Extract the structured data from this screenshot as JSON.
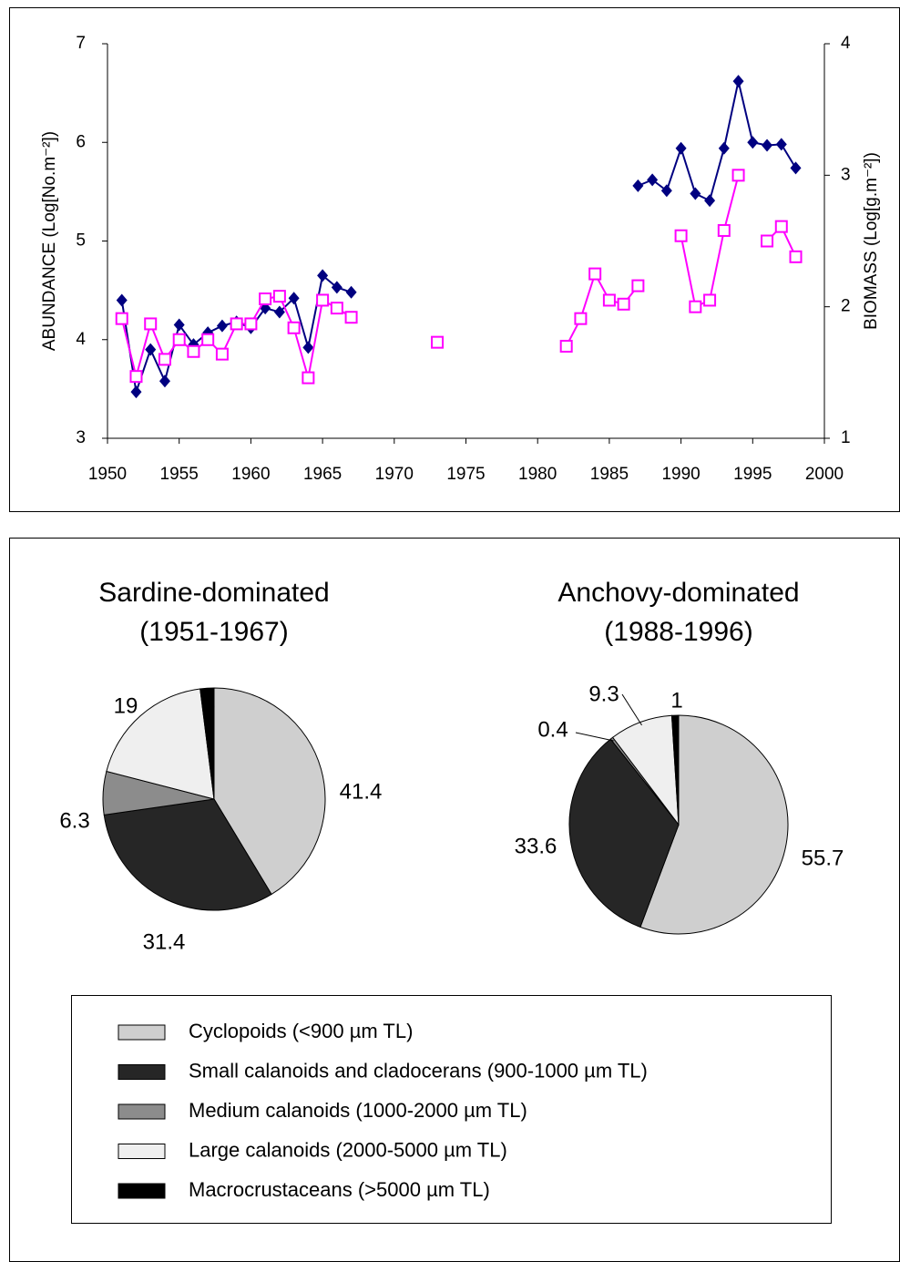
{
  "chart_data": [
    {
      "type": "line",
      "x": [
        1951,
        1952,
        1953,
        1954,
        1955,
        1956,
        1957,
        1958,
        1959,
        1960,
        1961,
        1962,
        1963,
        1964,
        1965,
        1966,
        1967,
        1968,
        1969,
        1970,
        1971,
        1972,
        1973,
        1974,
        1975,
        1976,
        1977,
        1978,
        1979,
        1980,
        1981,
        1982,
        1983,
        1984,
        1985,
        1986,
        1987,
        1988,
        1989,
        1990,
        1991,
        1992,
        1993,
        1994,
        1995,
        1996,
        1997,
        1998
      ],
      "xlim": [
        1950,
        2000
      ],
      "xticks": [
        1950,
        1955,
        1960,
        1965,
        1970,
        1975,
        1980,
        1985,
        1990,
        1995,
        2000
      ],
      "ylim": [
        3,
        7
      ],
      "yticks": [
        3,
        4,
        5,
        6,
        7
      ],
      "y2lim": [
        1,
        4
      ],
      "y2ticks": [
        1,
        2,
        3,
        4
      ],
      "y_label": "ABUNDANCE (Log[No.m⁻²])",
      "y2_label": "BIOMASS (Log[g.m⁻²])",
      "grid": false,
      "series": [
        {
          "color": "#000080",
          "marker": "diamond",
          "values": [
            4.4,
            3.47,
            3.9,
            3.58,
            4.15,
            3.95,
            4.07,
            4.14,
            4.18,
            4.12,
            4.32,
            4.28,
            4.42,
            3.92,
            4.65,
            4.53,
            4.48,
            null,
            null,
            null,
            null,
            null,
            null,
            null,
            null,
            null,
            null,
            null,
            null,
            null,
            null,
            null,
            null,
            null,
            null,
            null,
            5.56,
            5.62,
            5.51,
            5.94,
            5.48,
            5.41,
            5.94,
            6.62,
            6.0,
            5.97,
            5.98,
            5.74
          ]
        },
        {
          "color": "#ff00ff",
          "marker": "square",
          "axis": "y2",
          "values": [
            1.91,
            1.47,
            1.87,
            1.6,
            1.75,
            1.66,
            1.75,
            1.64,
            1.87,
            1.87,
            2.06,
            2.08,
            1.84,
            1.46,
            2.05,
            1.99,
            1.92,
            null,
            null,
            null,
            null,
            null,
            1.73,
            null,
            null,
            null,
            null,
            null,
            null,
            null,
            null,
            1.7,
            1.91,
            2.25,
            2.05,
            2.02,
            2.16,
            null,
            null,
            2.54,
            2.0,
            2.05,
            2.58,
            3.0,
            null,
            2.5,
            2.61,
            2.38
          ]
        }
      ]
    },
    {
      "type": "pie",
      "categories": [
        "Cyclopoids (<900 µm TL)",
        "Small calanoids and cladocerans (900-1000 µm TL)",
        "Medium calanoids (1000-2000 µm TL)",
        "Large calanoids (2000-5000 µm TL)",
        "Macrocrustaceans (>5000 µm TL)"
      ],
      "colors": [
        "#cfcfcf",
        "#262626",
        "#8c8c8c",
        "#efefef",
        "#000000"
      ],
      "legend": "bottom",
      "series": [
        {
          "title": [
            "Sardine-dominated",
            "(1951-1967)"
          ],
          "values": [
            41.4,
            31.4,
            6.3,
            19,
            2
          ]
        },
        {
          "title": [
            "Anchovy-dominated",
            "(1988-1996)"
          ],
          "values": [
            55.7,
            33.6,
            0.4,
            9.3,
            1
          ]
        }
      ]
    }
  ]
}
